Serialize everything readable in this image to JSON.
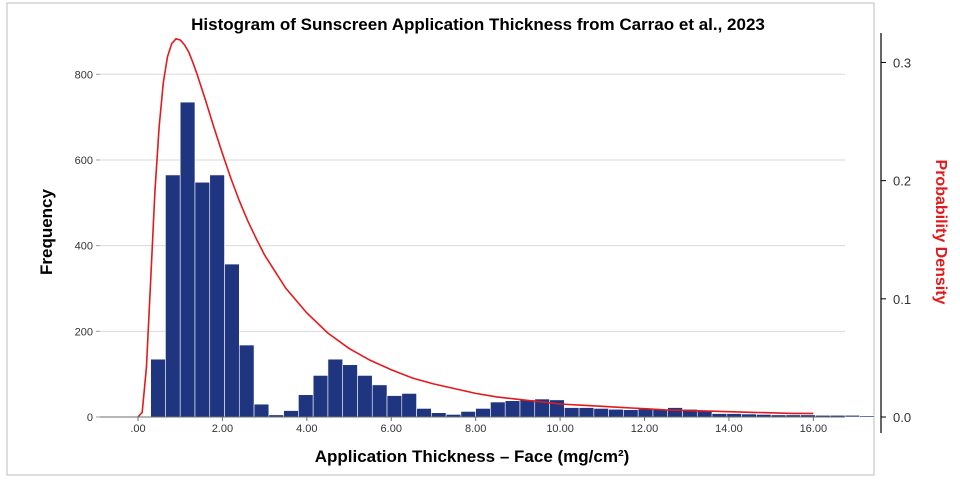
{
  "chart_data": {
    "type": "bar",
    "title": "Histogram of Sunscreen Application  Thickness from Carrao et al., 2023",
    "xlabel": "Application  Thickness – Face (mg/cm²)",
    "ylabel": "Frequency",
    "y2label": "Probability Density",
    "xlim": [
      -0.9,
      16.75
    ],
    "ylim": [
      0,
      880
    ],
    "y2lim": [
      0,
      0.3
    ],
    "xticks": [
      0,
      2,
      4,
      6,
      8,
      10,
      12,
      14,
      16
    ],
    "xtick_labels": [
      ".00",
      "2.00",
      "4.00",
      "6.00",
      "8.00",
      "10.00",
      "12.00",
      "14.00",
      "16.00"
    ],
    "yticks": [
      0,
      200,
      400,
      600,
      800
    ],
    "ytick_labels": [
      "0",
      "200",
      "400",
      "600",
      "800"
    ],
    "y2ticks": [
      0,
      0.1,
      0.2,
      0.3
    ],
    "y2tick_labels": [
      "0.0",
      "0.1",
      "0.2",
      "0.3"
    ],
    "grid": true,
    "bin_width": 0.35,
    "bin_start": 0.3,
    "series": [
      {
        "values": [
          135,
          565,
          735,
          548,
          565,
          357,
          168,
          30,
          5,
          15,
          52,
          97,
          135,
          122,
          97,
          75,
          50,
          55,
          20,
          10,
          6,
          13,
          20,
          35,
          38,
          40,
          42,
          40,
          22,
          22,
          20,
          18,
          17,
          19,
          17,
          22,
          18,
          15,
          8,
          8,
          7,
          6,
          5,
          5,
          5,
          4,
          4,
          4,
          3
        ],
        "color": "#1F3580"
      },
      {
        "type": "line",
        "color": "#E31A1C",
        "x": [
          0,
          0.1,
          0.2,
          0.3,
          0.4,
          0.5,
          0.6,
          0.7,
          0.8,
          0.9,
          1.0,
          1.1,
          1.2,
          1.3,
          1.4,
          1.5,
          1.6,
          1.8,
          2.0,
          2.2,
          2.4,
          2.6,
          2.8,
          3.0,
          3.5,
          4.0,
          4.5,
          5.0,
          5.5,
          6.0,
          6.5,
          7.0,
          7.5,
          8.0,
          8.5,
          9.0,
          9.5,
          10.0,
          10.5,
          11.0,
          11.5,
          12.0,
          12.5,
          13.0,
          13.5,
          14.0,
          14.5,
          15.0,
          15.5,
          16.0
        ],
        "y": [
          0.0,
          0.004,
          0.042,
          0.115,
          0.19,
          0.245,
          0.283,
          0.305,
          0.316,
          0.32,
          0.319,
          0.315,
          0.309,
          0.3,
          0.29,
          0.279,
          0.268,
          0.245,
          0.223,
          0.202,
          0.183,
          0.166,
          0.151,
          0.137,
          0.109,
          0.088,
          0.071,
          0.058,
          0.048,
          0.04,
          0.033,
          0.028,
          0.024,
          0.02,
          0.017,
          0.015,
          0.013,
          0.011,
          0.01,
          0.009,
          0.008,
          0.007,
          0.006,
          0.0055,
          0.005,
          0.0045,
          0.004,
          0.0035,
          0.003,
          0.003
        ]
      }
    ]
  }
}
